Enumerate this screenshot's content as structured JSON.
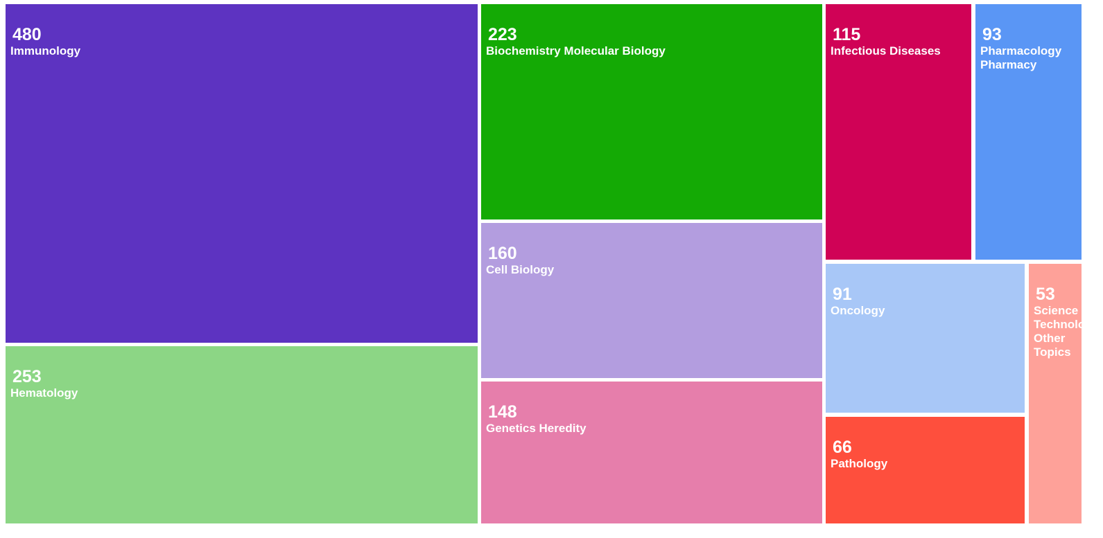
{
  "chart_data": {
    "type": "treemap",
    "title": "",
    "items": [
      {
        "label": "Immunology",
        "value": 480,
        "color": "#5d33c1"
      },
      {
        "label": "Hematology",
        "value": 253,
        "color": "#8cd685"
      },
      {
        "label": "Biochemistry Molecular Biology",
        "value": 223,
        "color": "#14aa05"
      },
      {
        "label": "Cell Biology",
        "value": 160,
        "color": "#b39ddf"
      },
      {
        "label": "Genetics Heredity",
        "value": 148,
        "color": "#e67eab"
      },
      {
        "label": "Infectious Diseases",
        "value": 115,
        "color": "#d00256"
      },
      {
        "label": "Pharmacology Pharmacy",
        "value": 93,
        "color": "#5a96f5"
      },
      {
        "label": "Oncology",
        "value": 91,
        "color": "#a8c7f7"
      },
      {
        "label": "Pathology",
        "value": 66,
        "color": "#fe4f3d"
      },
      {
        "label": "Science Technology Other Topics",
        "value": 53,
        "color": "#fea199"
      }
    ]
  }
}
